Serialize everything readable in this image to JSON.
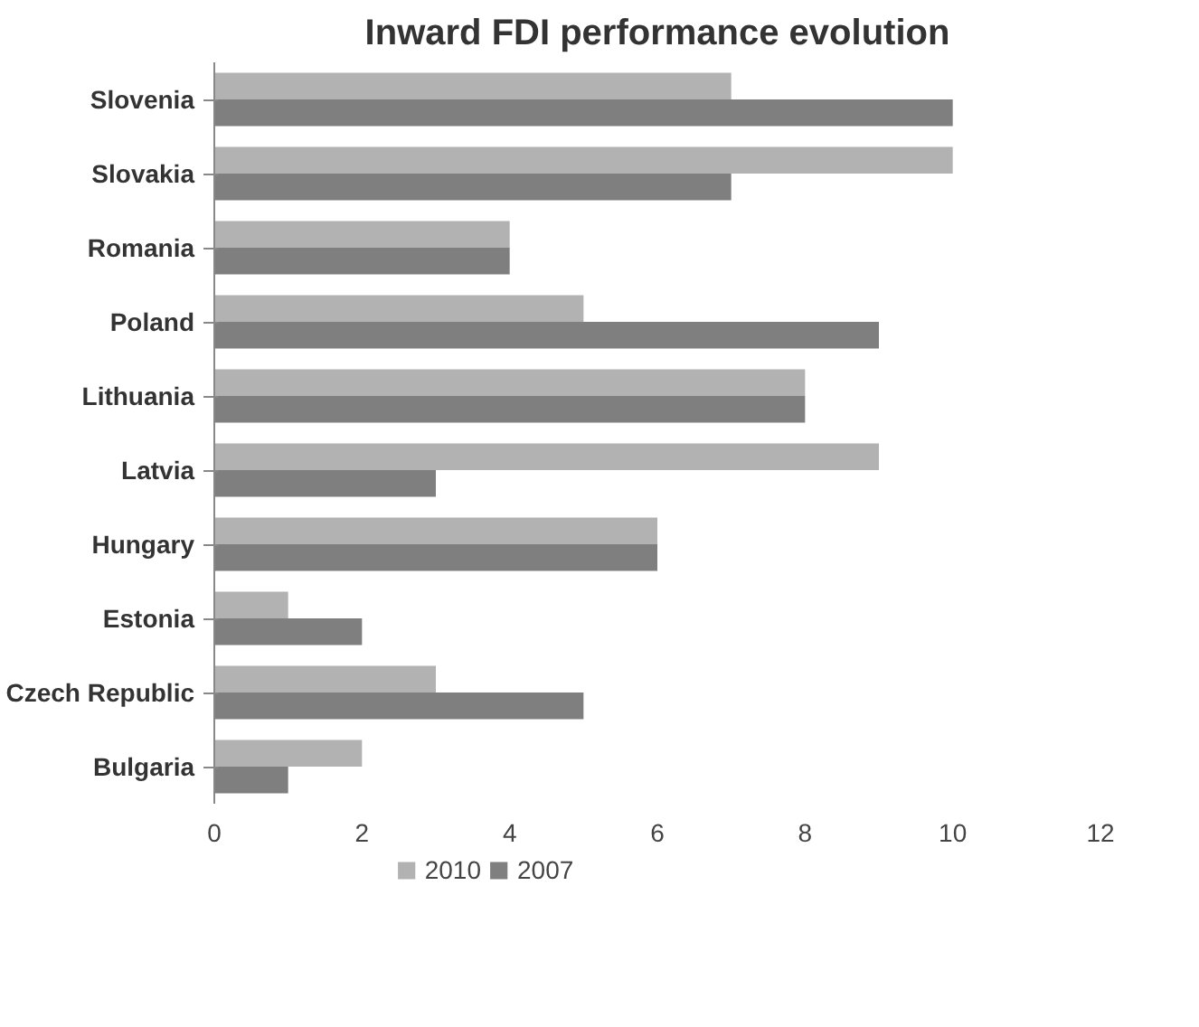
{
  "chart_data": {
    "type": "bar",
    "orientation": "horizontal",
    "title": "Inward FDI performance evolution",
    "categories": [
      "Slovenia",
      "Slovakia",
      "Romania",
      "Poland",
      "Lithuania",
      "Latvia",
      "Hungary",
      "Estonia",
      "Czech Republic",
      "Bulgaria"
    ],
    "series": [
      {
        "name": "2010",
        "color": "#b2b2b2",
        "values": [
          7,
          10,
          4,
          5,
          8,
          9,
          6,
          1,
          3,
          2
        ]
      },
      {
        "name": "2007",
        "color": "#7f7f7f",
        "values": [
          10,
          7,
          4,
          9,
          8,
          3,
          6,
          2,
          5,
          1
        ]
      }
    ],
    "xlim": [
      0,
      12
    ],
    "xticks": [
      0,
      2,
      4,
      6,
      8,
      10,
      12
    ],
    "grid": false,
    "legend": "bottom"
  }
}
